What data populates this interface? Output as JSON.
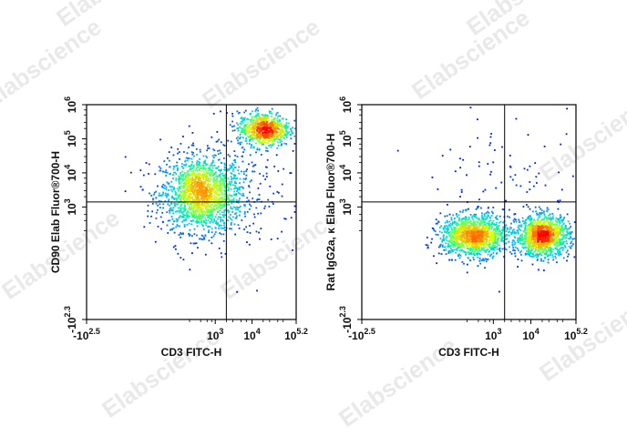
{
  "watermark": "Elabscience",
  "chart_data": [
    {
      "type": "scatter",
      "subtype": "flow-cytometry-density-dot-plot",
      "xlabel": "CD3 FITC-H",
      "ylabel": "CD90 Elab Fluor®700-H",
      "x_scale": "biexponential",
      "y_scale": "biexponential",
      "x_ticks": [
        {
          "base": "-10",
          "exp": "2.5",
          "value": -316
        },
        {
          "base": "10",
          "exp": "3",
          "value": 1000
        },
        {
          "base": "10",
          "exp": "4",
          "value": 10000
        },
        {
          "base": "10",
          "exp": "5.2",
          "value": 158489
        }
      ],
      "y_ticks": [
        {
          "base": "-10",
          "exp": "2.3",
          "value": -200
        },
        {
          "base": "10",
          "exp": "3",
          "value": 1000
        },
        {
          "base": "10",
          "exp": "4",
          "value": 10000
        },
        {
          "base": "10",
          "exp": "5",
          "value": 100000
        },
        {
          "base": "10",
          "exp": "6",
          "value": 1000000
        }
      ],
      "xlim": [
        -316,
        158489
      ],
      "ylim": [
        -200,
        1000000
      ],
      "quadrant_gate": {
        "x": 2000,
        "y": 1400
      },
      "populations": [
        {
          "x_center": 400,
          "y_center": 2500,
          "x_spread": 0.55,
          "y_spread": 0.55,
          "density": 0.62
        },
        {
          "x_center": 20000,
          "y_center": 200000,
          "x_spread": 0.35,
          "y_spread": 0.25,
          "density": 0.3
        },
        {
          "x_center": 3000,
          "y_center": 4000,
          "x_spread": 1.0,
          "y_spread": 1.0,
          "density": 0.08
        }
      ],
      "colormap": [
        "#0000ff",
        "#00b7ff",
        "#00ff9a",
        "#d7ff00",
        "#ff9900",
        "#ff0000"
      ]
    },
    {
      "type": "scatter",
      "subtype": "flow-cytometry-density-dot-plot",
      "xlabel": "CD3 FITC-H",
      "ylabel": "Rat IgG2a, κ Elab Fluor®700-H",
      "x_scale": "biexponential",
      "y_scale": "biexponential",
      "x_ticks": [
        {
          "base": "-10",
          "exp": "2.5",
          "value": -316
        },
        {
          "base": "10",
          "exp": "3",
          "value": 1000
        },
        {
          "base": "10",
          "exp": "4",
          "value": 10000
        },
        {
          "base": "10",
          "exp": "5.2",
          "value": 158489
        }
      ],
      "y_ticks": [
        {
          "base": "-10",
          "exp": "2.3",
          "value": -200
        },
        {
          "base": "10",
          "exp": "3",
          "value": 1000
        },
        {
          "base": "10",
          "exp": "4",
          "value": 10000
        },
        {
          "base": "10",
          "exp": "5",
          "value": 100000
        },
        {
          "base": "10",
          "exp": "6",
          "value": 1000000
        }
      ],
      "xlim": [
        -316,
        158489
      ],
      "ylim": [
        -200,
        1000000
      ],
      "quadrant_gate": {
        "x": 2000,
        "y": 1400
      },
      "populations": [
        {
          "x_center": 300,
          "y_center": 150,
          "x_spread": 0.45,
          "y_spread": 0.3,
          "density": 0.5
        },
        {
          "x_center": 20000,
          "y_center": 150,
          "x_spread": 0.35,
          "y_spread": 0.3,
          "density": 0.46
        },
        {
          "x_center": 3000,
          "y_center": 3000,
          "x_spread": 1.0,
          "y_spread": 1.0,
          "density": 0.04
        }
      ],
      "colormap": [
        "#0000ff",
        "#00b7ff",
        "#00ff9a",
        "#d7ff00",
        "#ff9900",
        "#ff0000"
      ]
    }
  ]
}
